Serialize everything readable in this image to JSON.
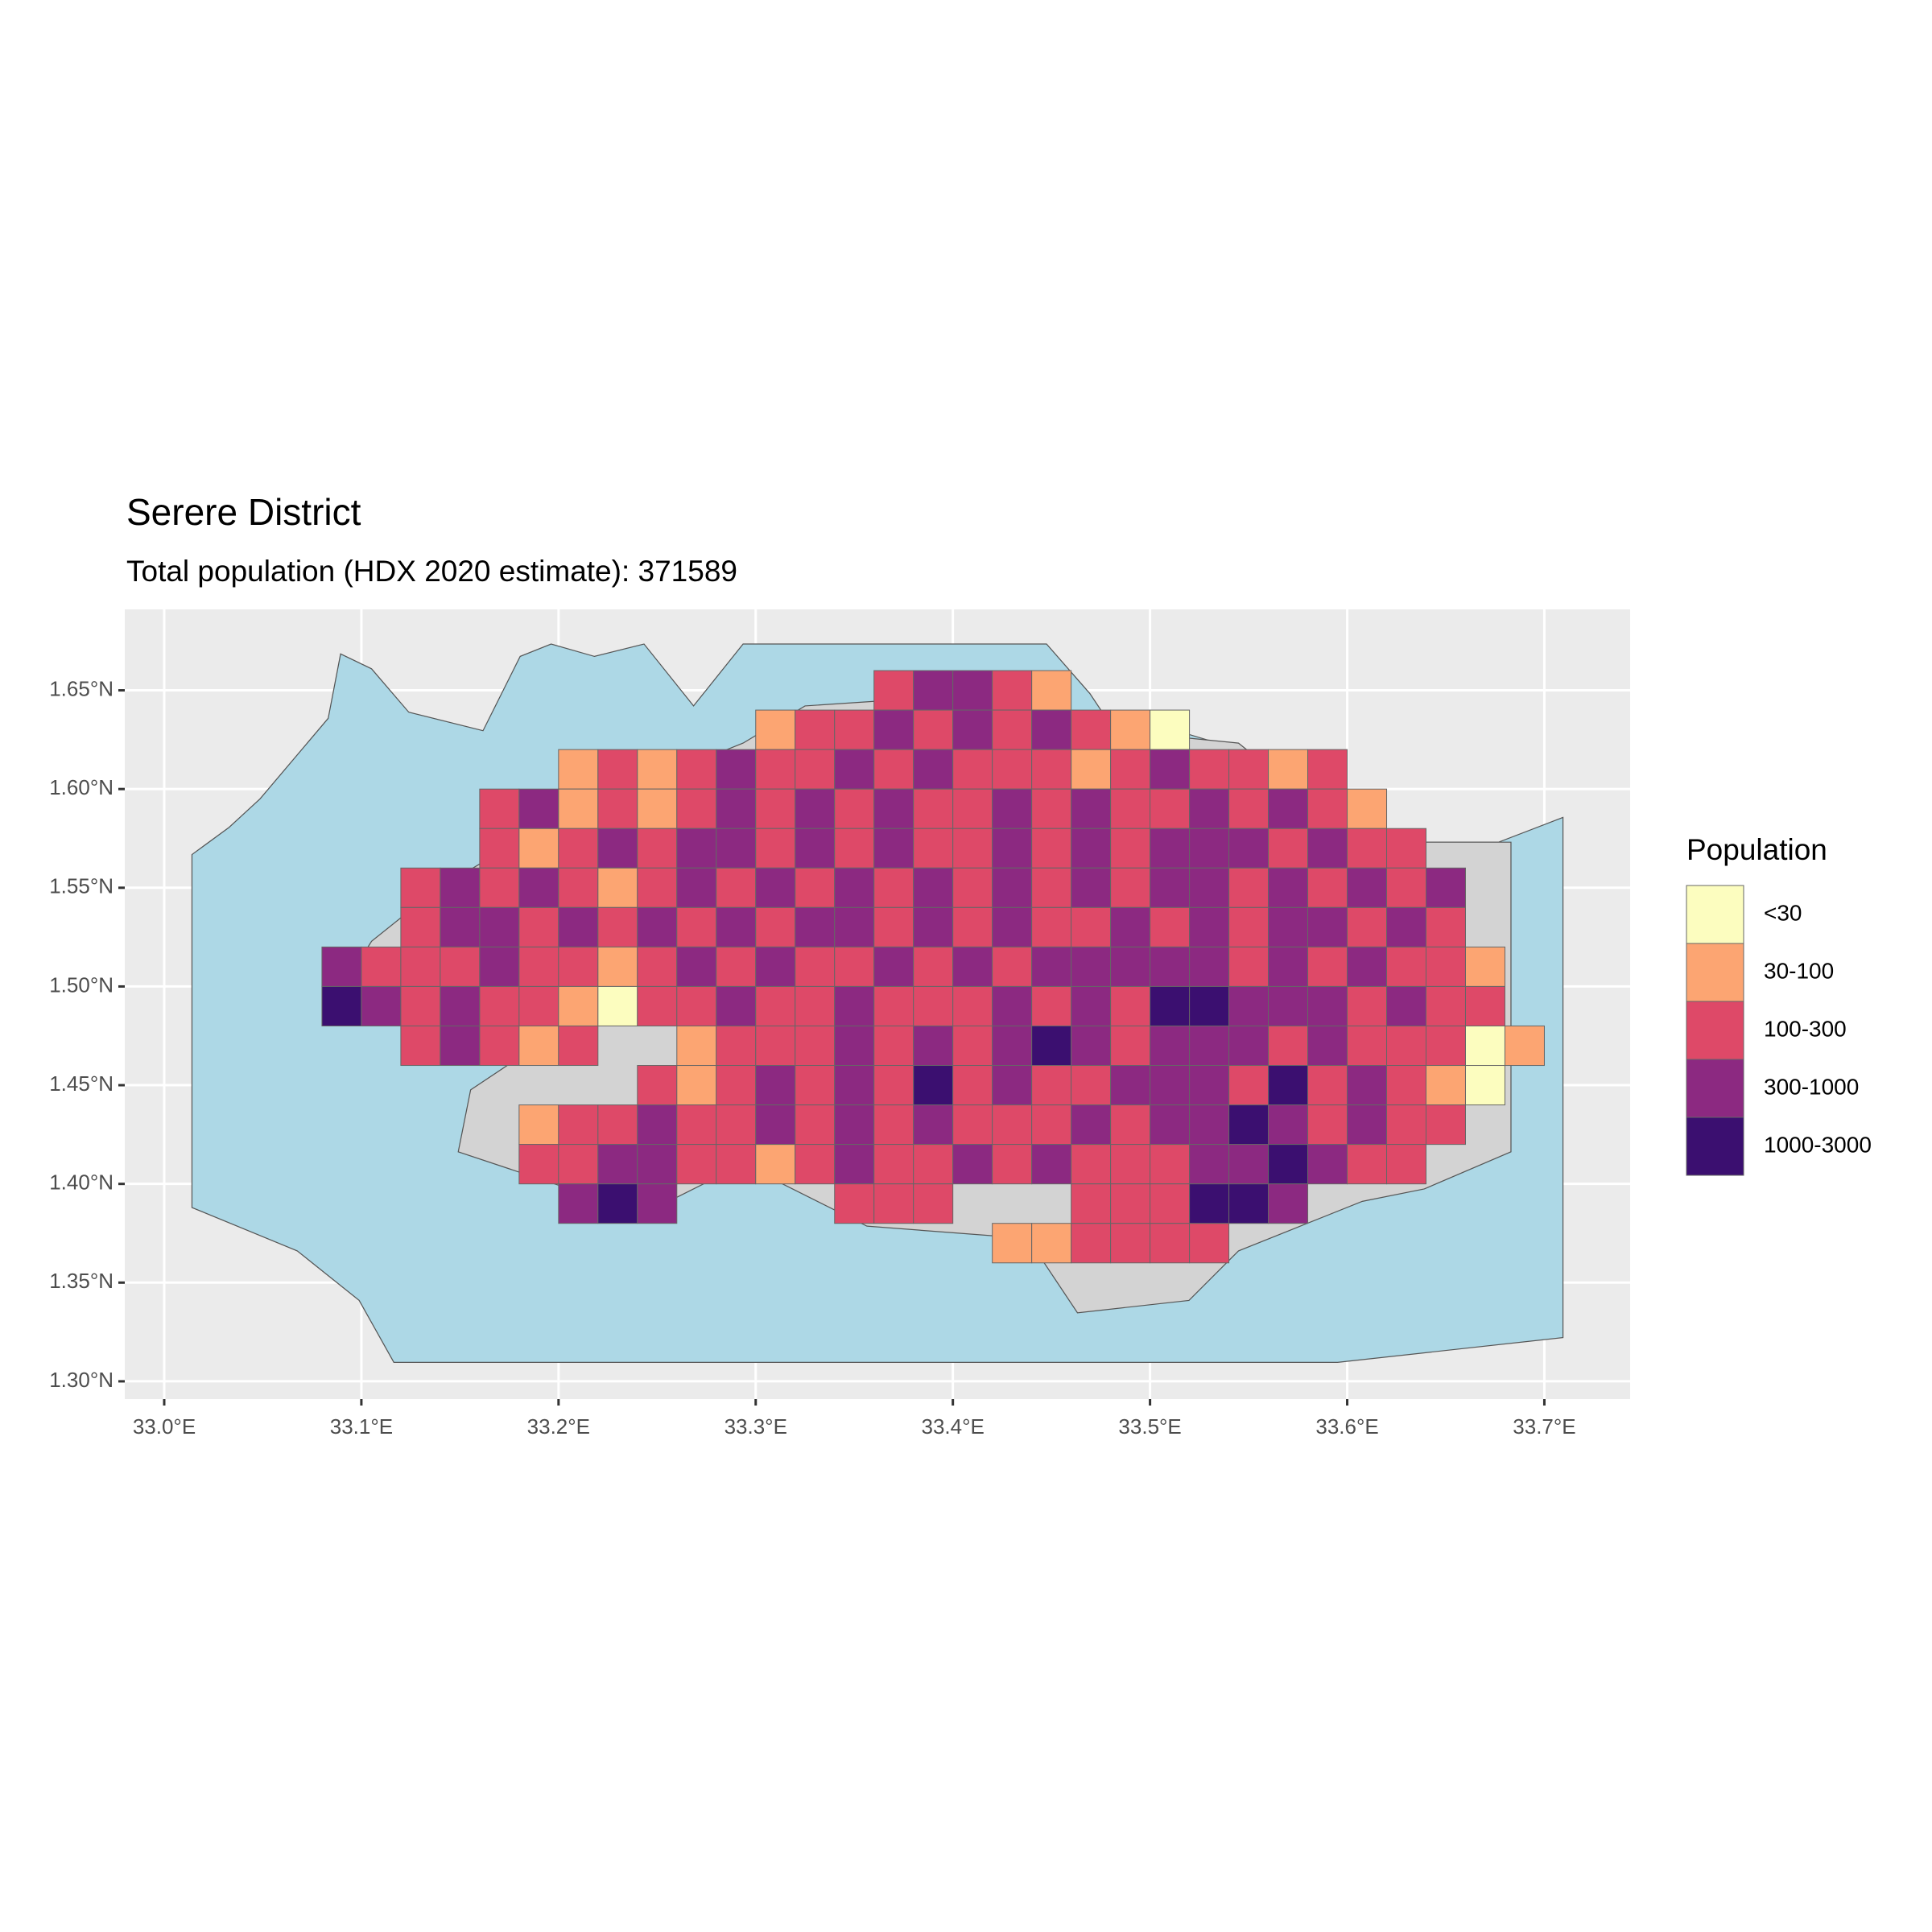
{
  "chart_data": {
    "type": "grid-map",
    "title": "Serere District",
    "subtitle": "Total population (HDX 2020 estimate): 371589",
    "xlim": [
      32.98,
      33.7435
    ],
    "ylim": [
      1.291,
      1.691
    ],
    "xticks": [
      {
        "value": 33.0,
        "label": "33.0°E"
      },
      {
        "value": 33.1,
        "label": "33.1°E"
      },
      {
        "value": 33.2,
        "label": "33.2°E"
      },
      {
        "value": 33.3,
        "label": "33.3°E"
      },
      {
        "value": 33.4,
        "label": "33.4°E"
      },
      {
        "value": 33.5,
        "label": "33.5°E"
      },
      {
        "value": 33.6,
        "label": "33.6°E"
      },
      {
        "value": 33.7,
        "label": "33.7°E"
      }
    ],
    "yticks": [
      {
        "value": 1.3,
        "label": "1.30°N"
      },
      {
        "value": 1.35,
        "label": "1.35°N"
      },
      {
        "value": 1.4,
        "label": "1.40°N"
      },
      {
        "value": 1.45,
        "label": "1.45°N"
      },
      {
        "value": 1.5,
        "label": "1.50°N"
      },
      {
        "value": 1.55,
        "label": "1.55°N"
      },
      {
        "value": 1.6,
        "label": "1.60°N"
      },
      {
        "value": 1.65,
        "label": "1.65°N"
      }
    ],
    "grid": true,
    "legend": {
      "title": "Population",
      "position": "right",
      "classes": [
        "<30",
        "30-100",
        "100-300",
        "300-1000",
        "1000-3000"
      ],
      "colors": [
        "#FCFDBF",
        "#FCA572",
        "#DE4968",
        "#8C2981",
        "#3B0F70"
      ]
    },
    "cells": {
      "lon_start": 33.08,
      "lat_start": 1.66,
      "step": 0.02,
      "rows": [
        "..............23321............",
        "...........12232323210.........",
        "......12123223232221232212.....",
        "....23121232323223232232321....",
        "....212323323232232323332322...",
        "..232321232323232323233232323..",
        "..233232323233232322323233232..",
        "322232212323223232333332323221.",
        "432322102232232223232443332322.",
        "..23212..1222323234323332322201",
        "........2123232423223332423210.",
        ".....122322323232223233432322..",
        ".....22332212322323222334322...",
        "......343....222...222443......",
        ".................112222........"
      ]
    }
  }
}
